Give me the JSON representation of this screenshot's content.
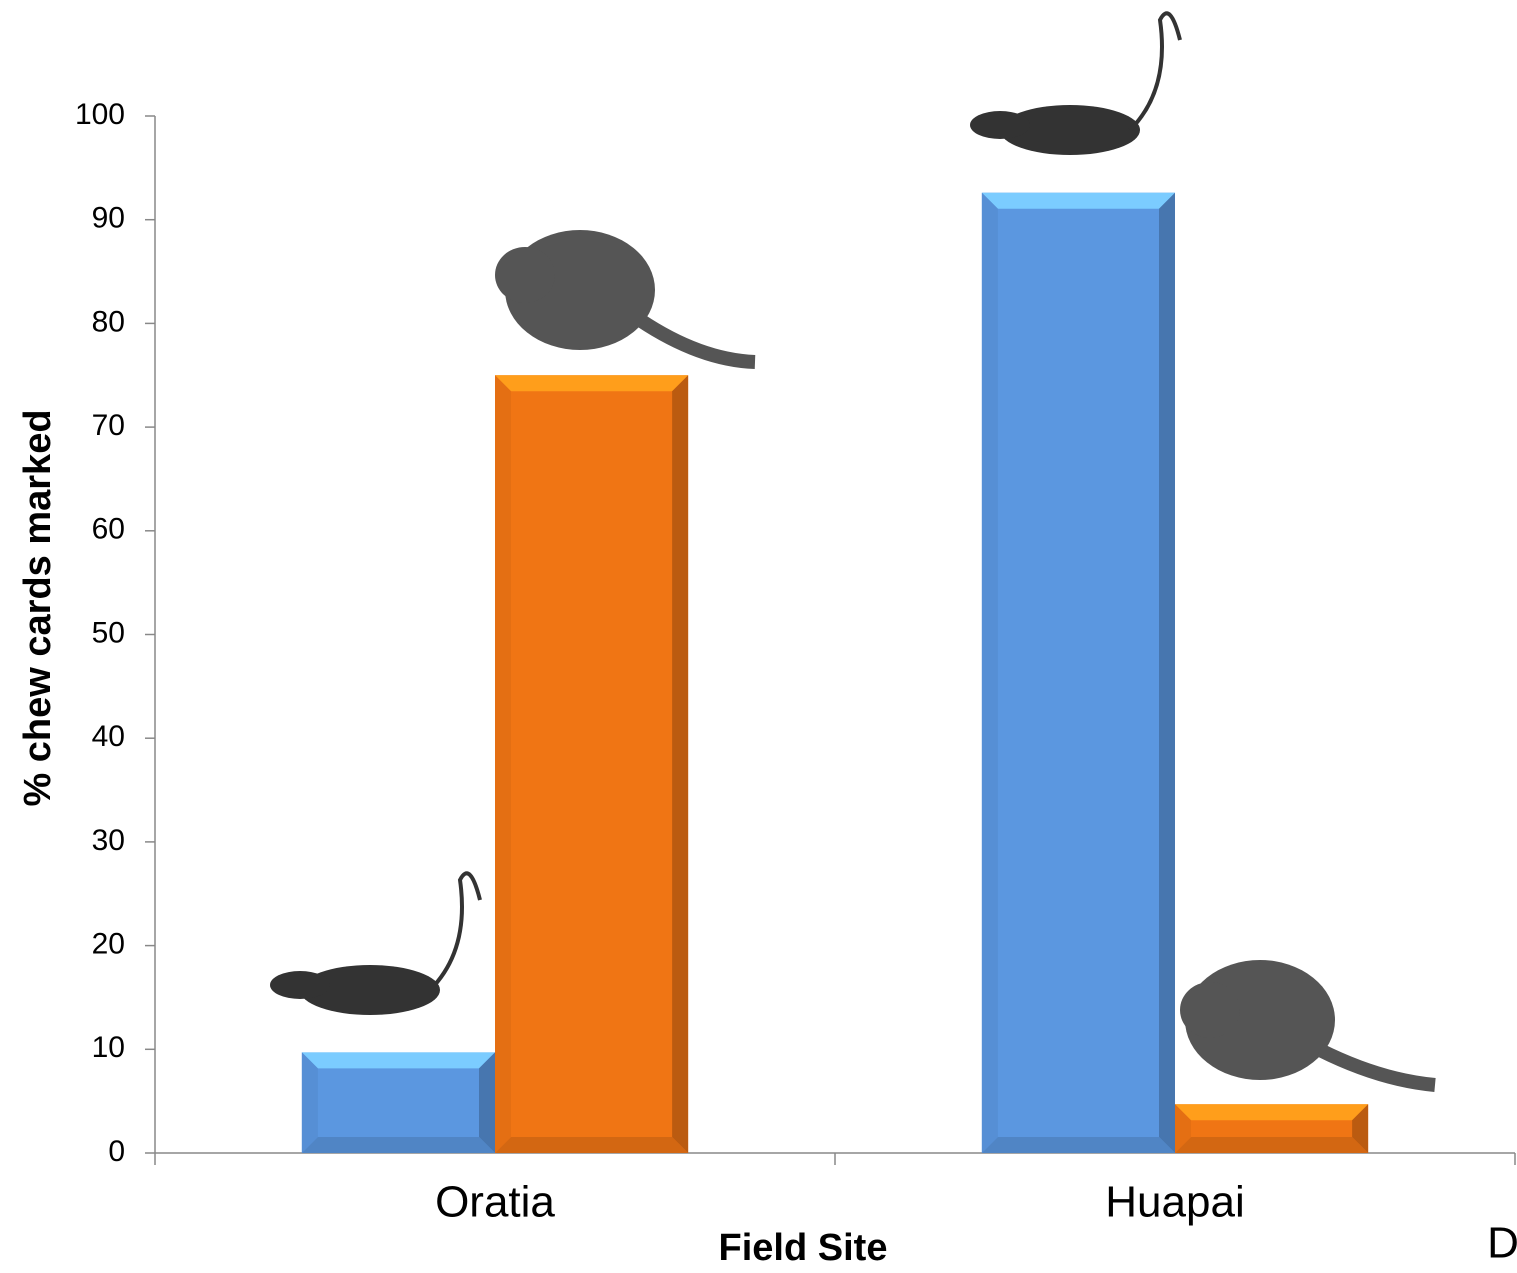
{
  "chart_data": {
    "type": "bar",
    "x_label": "Field Site",
    "y_label": "% chew cards marked",
    "panel_label": "D",
    "categories": [
      "Oratia",
      "Huapai"
    ],
    "series": [
      {
        "color": "#5b97e0",
        "values": [
          9.7,
          92.6
        ]
      },
      {
        "color": "#f07514",
        "values": [
          75,
          4.7
        ]
      }
    ],
    "ylim": [
      0,
      100
    ],
    "yticks": [
      0,
      10,
      20,
      30,
      40,
      50,
      60,
      70,
      80,
      90,
      100
    ],
    "grid": false
  }
}
